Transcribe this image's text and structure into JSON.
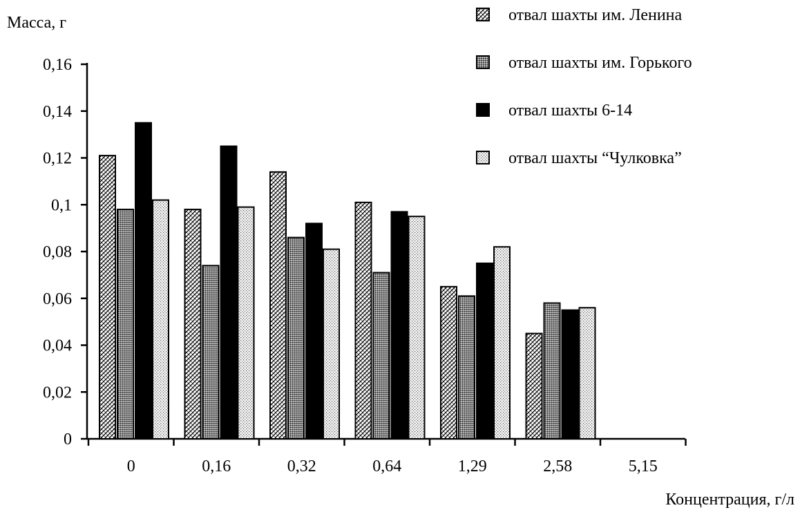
{
  "chart_data": {
    "type": "bar",
    "title": "",
    "ylabel": "Масса, г",
    "xlabel": "Концентрация, г/л",
    "ylim": [
      0,
      0.16
    ],
    "yticks": [
      0,
      0.02,
      0.04,
      0.06,
      0.08,
      0.1,
      0.12,
      0.14,
      0.16
    ],
    "ytick_labels": [
      "0",
      "0,02",
      "0,04",
      "0,06",
      "0,08",
      "0,1",
      "0,12",
      "0,14",
      "0,16"
    ],
    "categories": [
      "0",
      "0,16",
      "0,32",
      "0,64",
      "1,29",
      "2,58",
      "5,15"
    ],
    "grid": false,
    "legend_position": "top-right",
    "series": [
      {
        "name": "отвал шахты им. Ленина",
        "pattern": "diagonal-hatch",
        "color": "#000000",
        "values": [
          0.121,
          0.098,
          0.114,
          0.101,
          0.065,
          0.045,
          0
        ]
      },
      {
        "name": "отвал шахты им. Горького",
        "pattern": "dense-dots",
        "color": "#555555",
        "values": [
          0.098,
          0.074,
          0.086,
          0.071,
          0.061,
          0.058,
          0
        ]
      },
      {
        "name": "отвал шахты 6-14",
        "pattern": "solid",
        "color": "#000000",
        "values": [
          0.135,
          0.125,
          0.092,
          0.097,
          0.075,
          0.055,
          0
        ]
      },
      {
        "name": "отвал шахты “Чулковка”",
        "pattern": "light-dots",
        "color": "#bbbbbb",
        "values": [
          0.102,
          0.099,
          0.081,
          0.095,
          0.082,
          0.056,
          0
        ]
      }
    ]
  }
}
